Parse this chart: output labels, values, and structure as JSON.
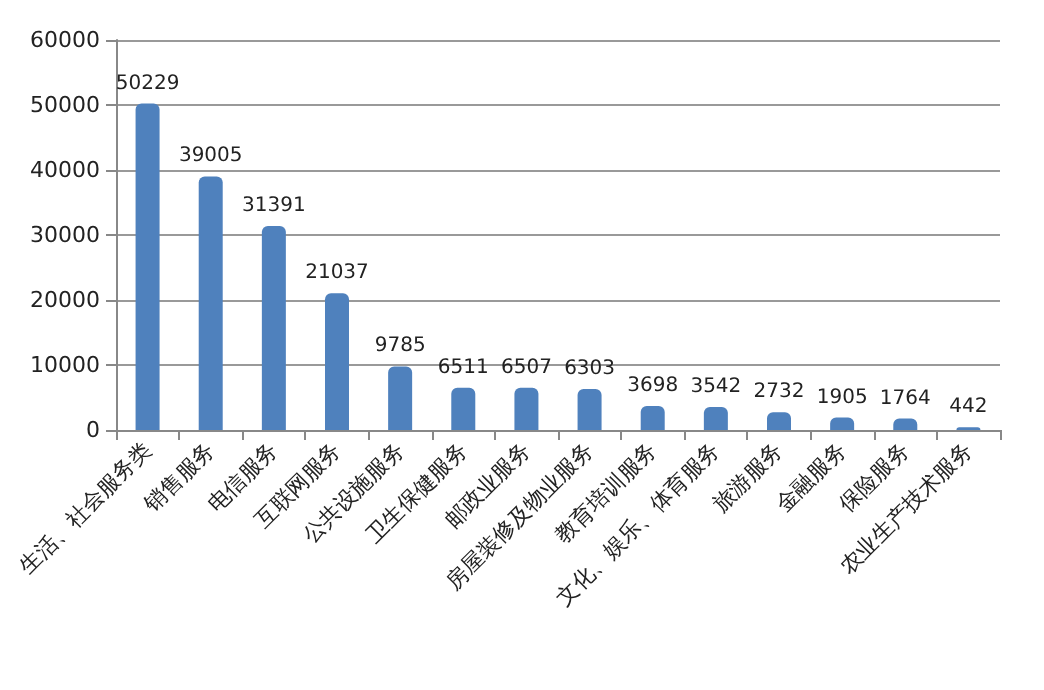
{
  "chart_data": {
    "type": "bar",
    "categories": [
      "生活、社会服务类",
      "销售服务",
      "电信服务",
      "互联网服务",
      "公共设施服务",
      "卫生保健服务",
      "邮政业服务",
      "房屋装修及物业服务",
      "教育培训服务",
      "文化、娱乐、体育服务",
      "旅游服务",
      "金融服务",
      "保险服务",
      "农业生产技术服务"
    ],
    "values": [
      50229,
      39005,
      31391,
      21037,
      9785,
      6511,
      6507,
      6303,
      3698,
      3542,
      2732,
      1905,
      1764,
      442
    ],
    "color": "#4f81bd",
    "ylim": [
      0,
      60000
    ],
    "yticks": [
      0,
      10000,
      20000,
      30000,
      40000,
      50000,
      60000
    ],
    "grid": "y",
    "data_labels": true
  }
}
